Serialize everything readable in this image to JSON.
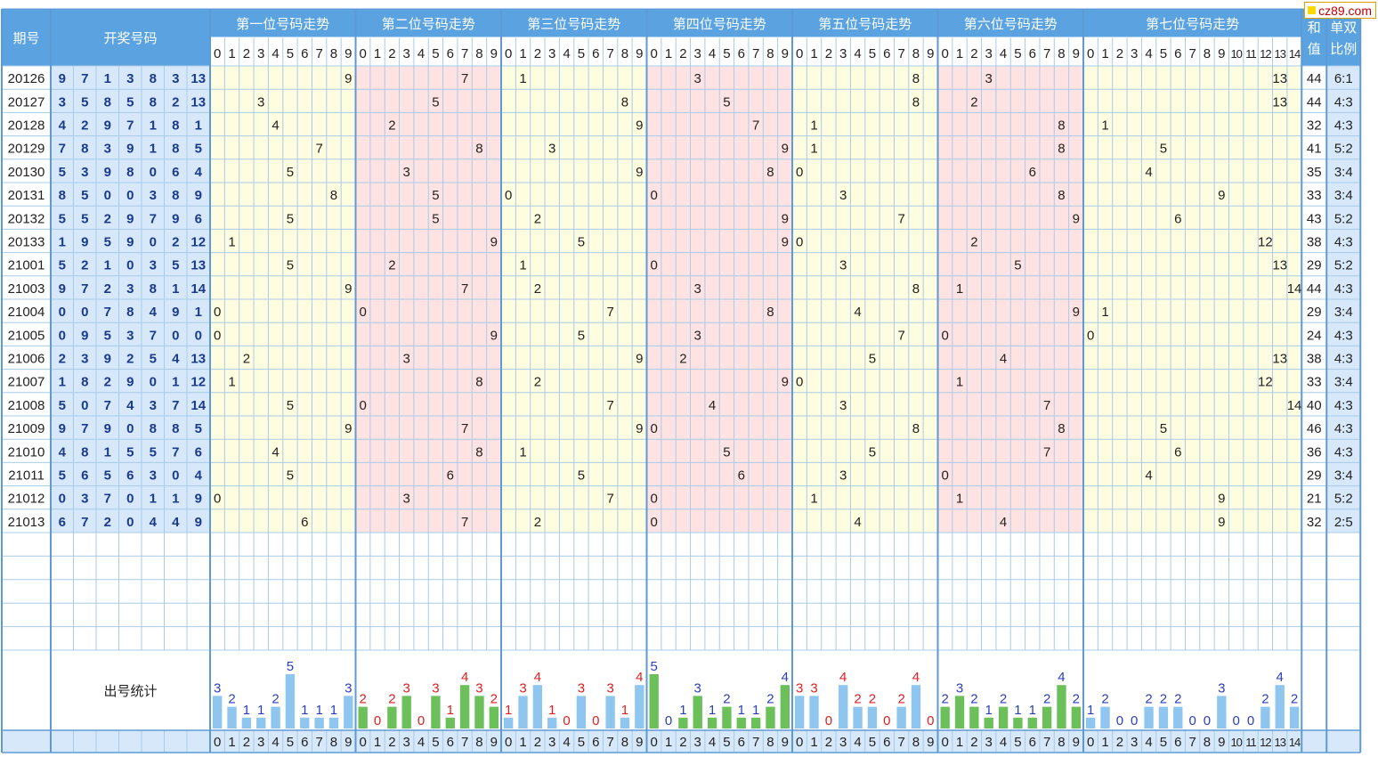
{
  "header": {
    "period_label": "期号",
    "draw_label": "开奖号码",
    "sum_label_lines": [
      "和",
      "值"
    ],
    "ratio_label_lines": [
      "单双",
      "比例"
    ],
    "stats_label": "出号统计"
  },
  "watermark": "cz89.com",
  "colors": {
    "blue_header": "#5aa2e0",
    "blue_dark_text": "#1c3a8c",
    "pale_blue": "#d6e8fa",
    "pale_yellow": "#fffde0",
    "pale_pink": "#ffe3e3",
    "grid": "#a8cbe8",
    "grid_dark": "#5e9ad6",
    "bar_blue": "#8ec6f0",
    "bar_green": "#6cc05a",
    "count_blue": "#2a3fbf",
    "count_red": "#e02020"
  },
  "chart_data": {
    "type": "table",
    "sections": [
      {
        "title": "第一位号码走势",
        "digits": [
          "0",
          "1",
          "2",
          "3",
          "4",
          "5",
          "6",
          "7",
          "8",
          "9"
        ],
        "bg": "yellow"
      },
      {
        "title": "第二位号码走势",
        "digits": [
          "0",
          "1",
          "2",
          "3",
          "4",
          "5",
          "6",
          "7",
          "8",
          "9"
        ],
        "bg": "pink"
      },
      {
        "title": "第三位号码走势",
        "digits": [
          "0",
          "1",
          "2",
          "3",
          "4",
          "5",
          "6",
          "7",
          "8",
          "9"
        ],
        "bg": "yellow"
      },
      {
        "title": "第四位号码走势",
        "digits": [
          "0",
          "1",
          "2",
          "3",
          "4",
          "5",
          "6",
          "7",
          "8",
          "9"
        ],
        "bg": "pink"
      },
      {
        "title": "第五位号码走势",
        "digits": [
          "0",
          "1",
          "2",
          "3",
          "4",
          "5",
          "6",
          "7",
          "8",
          "9"
        ],
        "bg": "yellow"
      },
      {
        "title": "第六位号码走势",
        "digits": [
          "0",
          "1",
          "2",
          "3",
          "4",
          "5",
          "6",
          "7",
          "8",
          "9"
        ],
        "bg": "pink"
      },
      {
        "title": "第七位号码走势",
        "digits": [
          "0",
          "1",
          "2",
          "3",
          "4",
          "5",
          "6",
          "7",
          "8",
          "9",
          "10",
          "11",
          "12",
          "13",
          "14"
        ],
        "bg": "yellow"
      }
    ],
    "rows": [
      {
        "period": "20126",
        "nums": [
          9,
          7,
          1,
          3,
          8,
          3,
          13
        ],
        "sum": "44",
        "ratio": "6:1"
      },
      {
        "period": "20127",
        "nums": [
          3,
          5,
          8,
          5,
          8,
          2,
          13
        ],
        "sum": "44",
        "ratio": "4:3"
      },
      {
        "period": "20128",
        "nums": [
          4,
          2,
          9,
          7,
          1,
          8,
          1
        ],
        "sum": "32",
        "ratio": "4:3"
      },
      {
        "period": "20129",
        "nums": [
          7,
          8,
          3,
          9,
          1,
          8,
          5
        ],
        "sum": "41",
        "ratio": "5:2"
      },
      {
        "period": "20130",
        "nums": [
          5,
          3,
          9,
          8,
          0,
          6,
          4
        ],
        "sum": "35",
        "ratio": "3:4"
      },
      {
        "period": "20131",
        "nums": [
          8,
          5,
          0,
          0,
          3,
          8,
          9
        ],
        "sum": "33",
        "ratio": "3:4"
      },
      {
        "period": "20132",
        "nums": [
          5,
          5,
          2,
          9,
          7,
          9,
          6
        ],
        "sum": "43",
        "ratio": "5:2"
      },
      {
        "period": "20133",
        "nums": [
          1,
          9,
          5,
          9,
          0,
          2,
          12
        ],
        "sum": "38",
        "ratio": "4:3"
      },
      {
        "period": "21001",
        "nums": [
          5,
          2,
          1,
          0,
          3,
          5,
          13
        ],
        "sum": "29",
        "ratio": "5:2"
      },
      {
        "period": "21003",
        "nums": [
          9,
          7,
          2,
          3,
          8,
          1,
          14
        ],
        "sum": "44",
        "ratio": "4:3"
      },
      {
        "period": "21004",
        "nums": [
          0,
          0,
          7,
          8,
          4,
          9,
          1
        ],
        "sum": "29",
        "ratio": "3:4"
      },
      {
        "period": "21005",
        "nums": [
          0,
          9,
          5,
          3,
          7,
          0,
          0
        ],
        "sum": "24",
        "ratio": "4:3"
      },
      {
        "period": "21006",
        "nums": [
          2,
          3,
          9,
          2,
          5,
          4,
          13
        ],
        "sum": "38",
        "ratio": "4:3"
      },
      {
        "period": "21007",
        "nums": [
          1,
          8,
          2,
          9,
          0,
          1,
          12
        ],
        "sum": "33",
        "ratio": "3:4"
      },
      {
        "period": "21008",
        "nums": [
          5,
          0,
          7,
          4,
          3,
          7,
          14
        ],
        "sum": "40",
        "ratio": "4:3"
      },
      {
        "period": "21009",
        "nums": [
          9,
          7,
          9,
          0,
          8,
          8,
          5
        ],
        "sum": "46",
        "ratio": "4:3"
      },
      {
        "period": "21010",
        "nums": [
          4,
          8,
          1,
          5,
          5,
          7,
          6
        ],
        "sum": "36",
        "ratio": "4:3"
      },
      {
        "period": "21011",
        "nums": [
          5,
          6,
          5,
          6,
          3,
          0,
          4
        ],
        "sum": "29",
        "ratio": "3:4"
      },
      {
        "period": "21012",
        "nums": [
          0,
          3,
          7,
          0,
          1,
          1,
          9
        ],
        "sum": "21",
        "ratio": "5:2"
      },
      {
        "period": "21013",
        "nums": [
          6,
          7,
          2,
          0,
          4,
          4,
          9
        ],
        "sum": "32",
        "ratio": "2:5"
      }
    ],
    "counts": [
      {
        "values": [
          3,
          2,
          1,
          1,
          2,
          5,
          1,
          1,
          1,
          3
        ],
        "colors": [
          "b",
          "b",
          "b",
          "b",
          "b",
          "b",
          "b",
          "b",
          "b",
          "b"
        ]
      },
      {
        "values": [
          2,
          0,
          2,
          3,
          0,
          3,
          1,
          4,
          3,
          2
        ],
        "colors": [
          "r",
          "r",
          "r",
          "r",
          "r",
          "r",
          "r",
          "r",
          "r",
          "r"
        ]
      },
      {
        "values": [
          1,
          3,
          4,
          1,
          0,
          3,
          0,
          3,
          1,
          4
        ],
        "colors": [
          "r",
          "r",
          "r",
          "r",
          "r",
          "r",
          "r",
          "r",
          "r",
          "r"
        ]
      },
      {
        "values": [
          5,
          0,
          1,
          3,
          1,
          2,
          1,
          1,
          2,
          4
        ],
        "colors": [
          "b",
          "b",
          "b",
          "b",
          "b",
          "b",
          "b",
          "b",
          "b",
          "b"
        ]
      },
      {
        "values": [
          3,
          3,
          0,
          4,
          2,
          2,
          0,
          2,
          4,
          0
        ],
        "colors": [
          "r",
          "r",
          "r",
          "r",
          "r",
          "r",
          "r",
          "r",
          "r",
          "r"
        ]
      },
      {
        "values": [
          2,
          3,
          2,
          1,
          2,
          1,
          1,
          2,
          4,
          2
        ],
        "colors": [
          "b",
          "b",
          "b",
          "b",
          "b",
          "b",
          "b",
          "b",
          "b",
          "b"
        ]
      },
      {
        "values": [
          1,
          2,
          0,
          0,
          2,
          2,
          2,
          0,
          0,
          3,
          0,
          0,
          2,
          4,
          2
        ],
        "colors": [
          "b",
          "b",
          "b",
          "b",
          "b",
          "b",
          "b",
          "b",
          "b",
          "b",
          "b",
          "b",
          "b",
          "b",
          "b"
        ]
      }
    ]
  }
}
